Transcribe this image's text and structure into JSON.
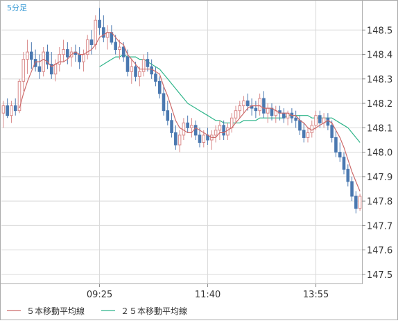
{
  "interval_label": "5分足",
  "legend": [
    {
      "label": "５本移動平均線",
      "color": "#cc6a6a"
    },
    {
      "label": "２５本移動平均線",
      "color": "#2fb58a"
    }
  ],
  "colors": {
    "up_candle": "#d98a8a",
    "down_candle": "#4a78b0",
    "grid": "#d9d9d9",
    "frame": "#aaaaaa"
  },
  "chart_data": {
    "type": "candlestick",
    "instrument_interval": "5分足",
    "x_tick_labels": [
      {
        "label": "09:25",
        "bar_index": 24
      },
      {
        "label": "11:40",
        "bar_index": 51
      },
      {
        "label": "13:55",
        "bar_index": 78
      }
    ],
    "y_ticks": [
      147.5,
      147.6,
      147.7,
      147.8,
      147.9,
      148.0,
      148.1,
      148.2,
      148.3,
      148.4,
      148.5
    ],
    "ylim": [
      147.46,
      148.62
    ],
    "grid": true,
    "legend_position": "bottom-left",
    "candles": [
      [
        148.16,
        148.21,
        148.1,
        148.19
      ],
      [
        148.19,
        148.22,
        148.14,
        148.15
      ],
      [
        148.15,
        148.21,
        148.12,
        148.19
      ],
      [
        148.19,
        148.22,
        148.15,
        148.17
      ],
      [
        148.17,
        148.3,
        148.16,
        148.29
      ],
      [
        148.29,
        148.41,
        148.25,
        148.38
      ],
      [
        148.38,
        148.46,
        148.32,
        148.41
      ],
      [
        148.41,
        148.45,
        148.34,
        148.38
      ],
      [
        148.38,
        148.42,
        148.33,
        148.35
      ],
      [
        148.35,
        148.4,
        148.3,
        148.33
      ],
      [
        148.33,
        148.43,
        148.31,
        148.41
      ],
      [
        148.41,
        148.44,
        148.34,
        148.36
      ],
      [
        148.36,
        148.41,
        148.3,
        148.32
      ],
      [
        148.32,
        148.38,
        148.29,
        148.36
      ],
      [
        148.36,
        148.43,
        148.33,
        148.4
      ],
      [
        148.4,
        148.46,
        148.37,
        148.42
      ],
      [
        148.42,
        148.45,
        148.36,
        148.39
      ],
      [
        148.39,
        148.43,
        148.35,
        148.41
      ],
      [
        148.41,
        148.44,
        148.37,
        148.4
      ],
      [
        148.4,
        148.43,
        148.34,
        148.37
      ],
      [
        148.37,
        148.42,
        148.33,
        148.4
      ],
      [
        148.4,
        148.48,
        148.38,
        148.46
      ],
      [
        148.46,
        148.5,
        148.4,
        148.44
      ],
      [
        148.44,
        148.56,
        148.42,
        148.54
      ],
      [
        148.54,
        148.59,
        148.48,
        148.51
      ],
      [
        148.51,
        148.56,
        148.45,
        148.47
      ],
      [
        148.47,
        148.52,
        148.42,
        148.49
      ],
      [
        148.49,
        148.52,
        148.44,
        148.45
      ],
      [
        148.45,
        148.48,
        148.4,
        148.42
      ],
      [
        148.42,
        148.46,
        148.38,
        148.43
      ],
      [
        148.43,
        148.45,
        148.37,
        148.39
      ],
      [
        148.39,
        148.42,
        148.31,
        148.33
      ],
      [
        148.33,
        148.38,
        148.28,
        148.35
      ],
      [
        148.35,
        148.37,
        148.29,
        148.31
      ],
      [
        148.31,
        148.35,
        148.27,
        148.33
      ],
      [
        148.33,
        148.4,
        148.31,
        148.38
      ],
      [
        148.38,
        148.41,
        148.33,
        148.35
      ],
      [
        148.35,
        148.38,
        148.3,
        148.32
      ],
      [
        148.32,
        148.35,
        148.27,
        148.29
      ],
      [
        148.29,
        148.31,
        148.22,
        148.24
      ],
      [
        148.24,
        148.27,
        148.15,
        148.17
      ],
      [
        148.17,
        148.21,
        148.11,
        148.13
      ],
      [
        148.13,
        148.16,
        148.06,
        148.08
      ],
      [
        148.08,
        148.11,
        148.01,
        148.03
      ],
      [
        148.03,
        148.09,
        148.0,
        148.07
      ],
      [
        148.07,
        148.14,
        148.05,
        148.12
      ],
      [
        148.12,
        148.15,
        148.08,
        148.1
      ],
      [
        148.1,
        148.14,
        148.06,
        148.11
      ],
      [
        148.11,
        148.13,
        148.05,
        148.07
      ],
      [
        148.07,
        148.1,
        148.02,
        148.04
      ],
      [
        148.04,
        148.09,
        148.02,
        148.07
      ],
      [
        148.07,
        148.1,
        148.03,
        148.05
      ],
      [
        148.05,
        148.09,
        148.01,
        148.07
      ],
      [
        148.07,
        148.11,
        148.04,
        148.09
      ],
      [
        148.09,
        148.13,
        148.05,
        148.11
      ],
      [
        148.11,
        148.13,
        148.05,
        148.07
      ],
      [
        148.07,
        148.12,
        148.05,
        148.1
      ],
      [
        148.1,
        148.16,
        148.08,
        148.14
      ],
      [
        148.14,
        148.19,
        148.12,
        148.17
      ],
      [
        148.17,
        148.21,
        148.14,
        148.19
      ],
      [
        148.19,
        148.23,
        148.16,
        148.21
      ],
      [
        148.21,
        148.24,
        148.17,
        148.19
      ],
      [
        148.19,
        148.22,
        148.15,
        148.18
      ],
      [
        148.18,
        148.21,
        148.14,
        148.17
      ],
      [
        148.17,
        148.24,
        148.15,
        148.22
      ],
      [
        148.22,
        148.25,
        148.14,
        148.16
      ],
      [
        148.16,
        148.2,
        148.12,
        148.18
      ],
      [
        148.18,
        148.2,
        148.13,
        148.15
      ],
      [
        148.15,
        148.19,
        148.12,
        148.17
      ],
      [
        148.17,
        148.19,
        148.13,
        148.16
      ],
      [
        148.16,
        148.18,
        148.12,
        148.14
      ],
      [
        148.14,
        148.17,
        148.11,
        148.16
      ],
      [
        148.16,
        148.18,
        148.12,
        148.14
      ],
      [
        148.14,
        148.17,
        148.1,
        148.13
      ],
      [
        148.13,
        148.15,
        148.07,
        148.09
      ],
      [
        148.09,
        148.12,
        148.04,
        148.06
      ],
      [
        148.06,
        148.1,
        148.04,
        148.08
      ],
      [
        148.08,
        148.13,
        148.06,
        148.11
      ],
      [
        148.11,
        148.17,
        148.09,
        148.15
      ],
      [
        148.15,
        148.17,
        148.1,
        148.12
      ],
      [
        148.12,
        148.16,
        148.1,
        148.14
      ],
      [
        148.14,
        148.16,
        148.09,
        148.11
      ],
      [
        148.11,
        148.13,
        148.04,
        148.06
      ],
      [
        148.06,
        148.09,
        147.98,
        148.0
      ],
      [
        148.0,
        148.04,
        147.96,
        147.98
      ],
      [
        147.98,
        148.0,
        147.91,
        147.93
      ],
      [
        147.93,
        147.95,
        147.86,
        147.88
      ],
      [
        147.88,
        147.9,
        147.8,
        147.82
      ],
      [
        147.82,
        147.84,
        147.75,
        147.77
      ],
      [
        147.77,
        147.83,
        147.76,
        147.82
      ]
    ],
    "series": [
      {
        "name": "５本移動平均線",
        "values": [
          null,
          null,
          null,
          null,
          148.18,
          148.24,
          148.29,
          148.33,
          148.37,
          148.37,
          148.38,
          148.37,
          148.35,
          148.36,
          148.37,
          148.37,
          148.38,
          148.4,
          148.41,
          148.4,
          148.4,
          148.41,
          148.42,
          148.44,
          148.47,
          148.48,
          148.49,
          148.49,
          148.47,
          148.45,
          148.44,
          148.4,
          148.38,
          148.36,
          148.34,
          148.34,
          148.34,
          148.34,
          148.33,
          148.32,
          148.27,
          148.23,
          148.18,
          148.13,
          148.1,
          148.09,
          148.08,
          148.08,
          148.1,
          148.09,
          148.08,
          148.07,
          148.06,
          148.06,
          148.08,
          148.08,
          148.09,
          148.1,
          148.12,
          148.14,
          148.16,
          148.18,
          148.19,
          148.19,
          148.19,
          148.18,
          148.18,
          148.18,
          148.17,
          148.16,
          148.16,
          148.16,
          148.15,
          148.15,
          148.13,
          148.12,
          148.1,
          148.09,
          148.1,
          148.11,
          148.12,
          148.13,
          148.12,
          148.09,
          148.06,
          148.02,
          147.97,
          147.92,
          147.88,
          147.84
        ]
      },
      {
        "name": "２５本移動平均線",
        "values": [
          null,
          null,
          null,
          null,
          null,
          null,
          null,
          null,
          null,
          null,
          null,
          null,
          null,
          null,
          null,
          null,
          null,
          null,
          null,
          null,
          null,
          null,
          null,
          null,
          148.35,
          148.36,
          148.37,
          148.38,
          148.39,
          148.39,
          148.4,
          148.39,
          148.39,
          148.39,
          148.38,
          148.38,
          148.37,
          148.36,
          148.35,
          148.34,
          148.32,
          148.3,
          148.28,
          148.26,
          148.24,
          148.22,
          148.2,
          148.19,
          148.18,
          148.17,
          148.16,
          148.15,
          148.14,
          148.13,
          148.13,
          148.12,
          148.12,
          148.12,
          148.12,
          148.12,
          148.13,
          148.13,
          148.13,
          148.13,
          148.14,
          148.14,
          148.14,
          148.14,
          148.14,
          148.14,
          148.14,
          148.15,
          148.15,
          148.15,
          148.15,
          148.15,
          148.15,
          148.14,
          148.14,
          148.14,
          148.14,
          148.14,
          148.14,
          148.13,
          148.12,
          148.11,
          148.1,
          148.08,
          148.06,
          148.04
        ]
      }
    ]
  }
}
